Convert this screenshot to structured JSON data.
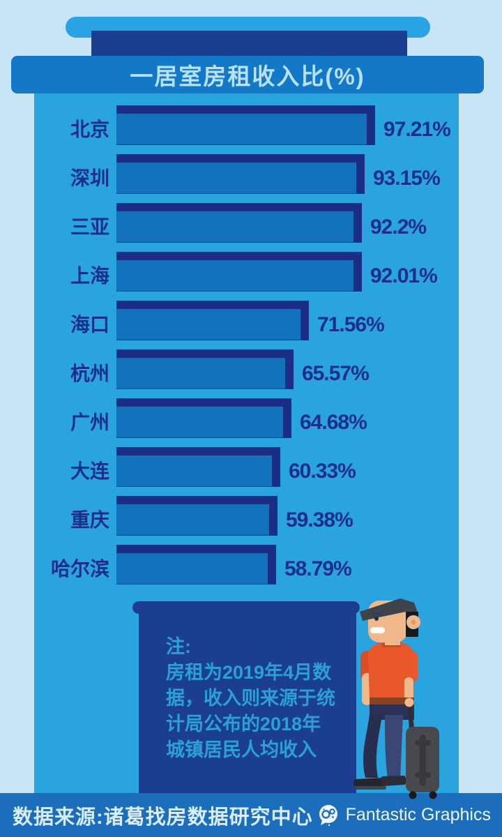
{
  "header": {
    "title": "一居室房租收入比(%)"
  },
  "chart_data": {
    "type": "bar",
    "orientation": "horizontal",
    "title": "一居室房租收入比(%)",
    "xlabel": "",
    "ylabel": "",
    "xlim": [
      0,
      100
    ],
    "grid": false,
    "categories": [
      "北京",
      "深圳",
      "三亚",
      "上海",
      "海口",
      "杭州",
      "广州",
      "大连",
      "重庆",
      "哈尔滨"
    ],
    "values": [
      97.21,
      93.15,
      92.2,
      92.01,
      71.56,
      65.57,
      64.68,
      60.33,
      59.38,
      58.79
    ],
    "value_labels": [
      "97.21%",
      "93.15%",
      "92.2%",
      "92.01%",
      "71.56%",
      "65.57%",
      "64.68%",
      "60.33%",
      "59.38%",
      "58.79%"
    ]
  },
  "note": {
    "heading": "注:",
    "lines": [
      "房租为2019年4月数",
      "据，收入则来源于统",
      "计局公布的2018年",
      "城镇居民人均收入"
    ]
  },
  "footer": {
    "source": "数据来源:诸葛找房数据研究中心",
    "brand": "Fantastic Graphics"
  },
  "colors": {
    "background": "#c9e4f6",
    "top_pill": "#29a3e3",
    "navy_block": "#1c3e90",
    "title_banner": "#1478c8",
    "title_text": "#b9e2f6",
    "panel": "#2aa4de",
    "bar_border": "#1b2e85",
    "bar_fill": "#1272bc",
    "label_text": "#1b2f87",
    "note_panel": "#1c3e90",
    "note_text": "#2b9fd9",
    "footer_bar": "#1d6dbd",
    "footer_text": "#d9edfa",
    "shirt_orange": "#e8582b",
    "skin": "#f1b88c",
    "pants_navy": "#2b3154",
    "suitcase_gray": "#47494f"
  }
}
